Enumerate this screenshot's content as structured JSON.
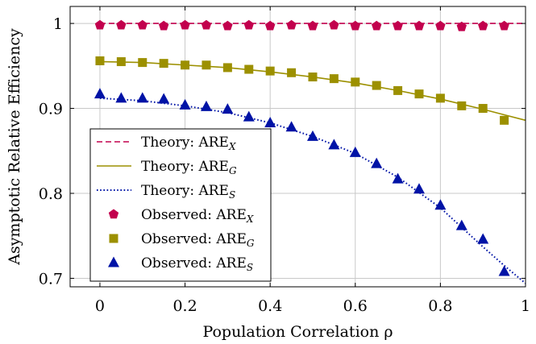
{
  "chart_data": {
    "type": "line",
    "title": "",
    "xlabel": "Population Correlation ρ",
    "ylabel": "Asymptotic Relative Efficiency",
    "xlim": [
      -0.07,
      1.0
    ],
    "ylim": [
      0.69,
      1.02
    ],
    "grid": true,
    "legend_position": "bottom-left",
    "x_ticks": [
      0,
      0.2,
      0.4,
      0.6,
      0.8,
      1
    ],
    "y_ticks": [
      0.7,
      0.8,
      0.9,
      1
    ],
    "x_tick_labels": [
      "0",
      "0.2",
      "0.4",
      "0.6",
      "0.8",
      "1"
    ],
    "y_tick_labels": [
      "0.7",
      "0.8",
      "0.9",
      "1"
    ],
    "colors": {
      "x": "#c2004d",
      "g": "#9c9000",
      "s": "#0013a6"
    },
    "series": [
      {
        "name": "Theory: ARE_X",
        "legend_main": "Theory: ARE",
        "legend_sub": "X",
        "kind": "line",
        "style": "dashed",
        "color_key": "x",
        "x": [
          0,
          0.1,
          0.2,
          0.3,
          0.4,
          0.5,
          0.6,
          0.7,
          0.8,
          0.9,
          1.0
        ],
        "values": [
          1,
          1,
          1,
          1,
          1,
          1,
          1,
          1,
          1,
          1,
          1
        ]
      },
      {
        "name": "Theory: ARE_G",
        "legend_main": "Theory: ARE",
        "legend_sub": "G",
        "kind": "line",
        "style": "solid",
        "color_key": "g",
        "x": [
          0,
          0.1,
          0.2,
          0.3,
          0.4,
          0.5,
          0.6,
          0.7,
          0.8,
          0.9,
          1.0
        ],
        "values": [
          0.955,
          0.954,
          0.951,
          0.948,
          0.943,
          0.937,
          0.93,
          0.921,
          0.911,
          0.899,
          0.886
        ]
      },
      {
        "name": "Theory: ARE_S",
        "legend_main": "Theory: ARE",
        "legend_sub": "S",
        "kind": "line",
        "style": "dotted",
        "color_key": "s",
        "x": [
          0,
          0.1,
          0.2,
          0.3,
          0.4,
          0.5,
          0.6,
          0.7,
          0.8,
          0.9,
          0.95,
          1.0
        ],
        "values": [
          0.912,
          0.909,
          0.903,
          0.895,
          0.883,
          0.867,
          0.847,
          0.819,
          0.783,
          0.737,
          0.715,
          0.694
        ]
      },
      {
        "name": "Observed: ARE_X",
        "legend_main": "Observed: ARE",
        "legend_sub": "X",
        "kind": "markers",
        "marker": "pentagon",
        "color_key": "x",
        "x": [
          0,
          0.05,
          0.1,
          0.15,
          0.2,
          0.25,
          0.3,
          0.35,
          0.4,
          0.45,
          0.5,
          0.55,
          0.6,
          0.65,
          0.7,
          0.75,
          0.8,
          0.85,
          0.9,
          0.95
        ],
        "values": [
          0.998,
          0.998,
          0.998,
          0.997,
          0.998,
          0.998,
          0.997,
          0.998,
          0.997,
          0.998,
          0.997,
          0.998,
          0.997,
          0.997,
          0.997,
          0.997,
          0.997,
          0.996,
          0.997,
          0.997
        ]
      },
      {
        "name": "Observed: ARE_G",
        "legend_main": "Observed: ARE",
        "legend_sub": "G",
        "kind": "markers",
        "marker": "square",
        "color_key": "g",
        "x": [
          0,
          0.05,
          0.1,
          0.15,
          0.2,
          0.25,
          0.3,
          0.35,
          0.4,
          0.45,
          0.5,
          0.55,
          0.6,
          0.65,
          0.7,
          0.75,
          0.8,
          0.85,
          0.9,
          0.95
        ],
        "values": [
          0.956,
          0.955,
          0.954,
          0.953,
          0.951,
          0.951,
          0.948,
          0.946,
          0.944,
          0.942,
          0.937,
          0.935,
          0.931,
          0.927,
          0.921,
          0.917,
          0.912,
          0.903,
          0.9,
          0.886
        ]
      },
      {
        "name": "Observed: ARE_S",
        "legend_main": "Observed: ARE",
        "legend_sub": "S",
        "kind": "markers",
        "marker": "triangle",
        "color_key": "s",
        "x": [
          0,
          0.05,
          0.1,
          0.15,
          0.2,
          0.25,
          0.3,
          0.35,
          0.4,
          0.45,
          0.5,
          0.55,
          0.6,
          0.65,
          0.7,
          0.75,
          0.8,
          0.85,
          0.9,
          0.95
        ],
        "values": [
          0.917,
          0.912,
          0.912,
          0.911,
          0.904,
          0.902,
          0.899,
          0.89,
          0.883,
          0.878,
          0.867,
          0.857,
          0.848,
          0.835,
          0.817,
          0.805,
          0.786,
          0.762,
          0.746,
          0.708
        ]
      }
    ]
  }
}
